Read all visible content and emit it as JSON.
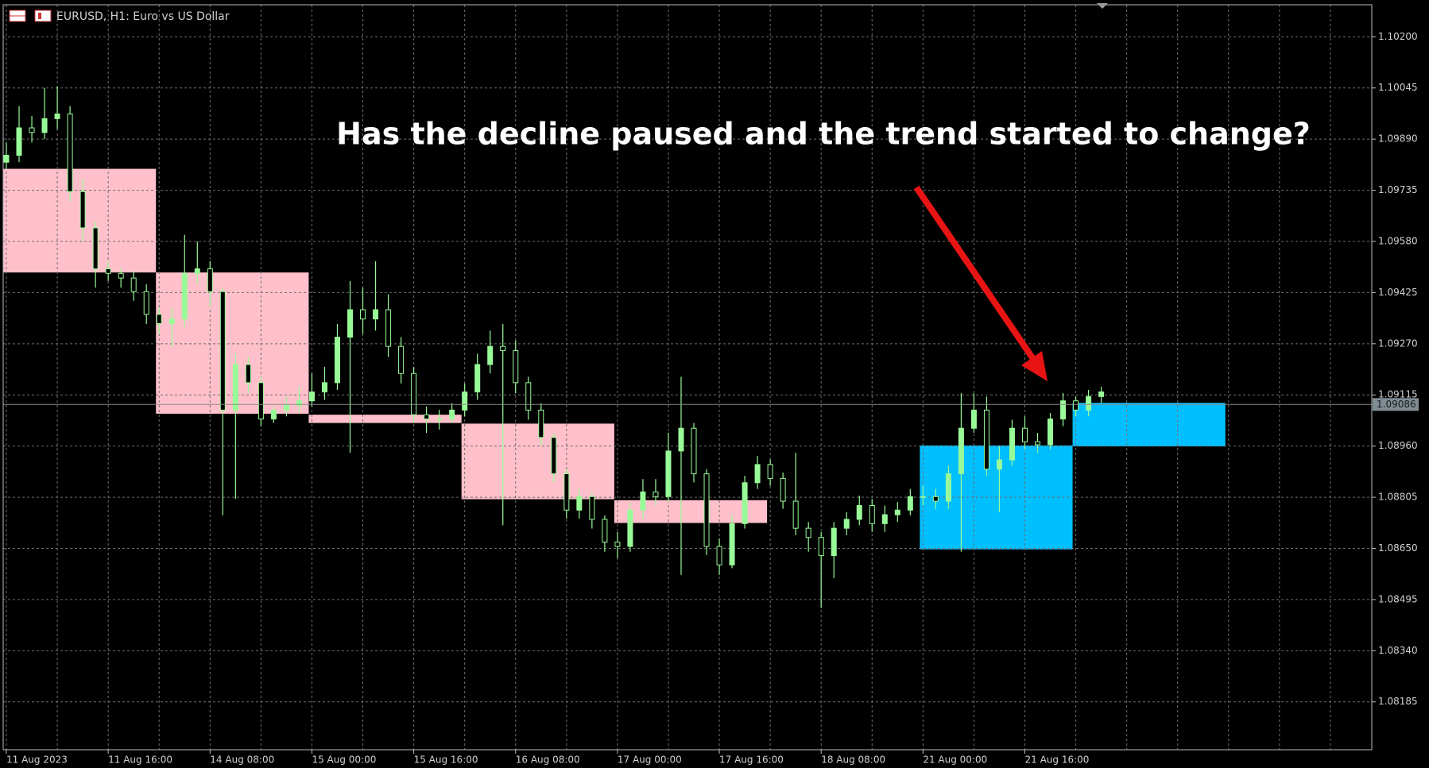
{
  "chart_data": {
    "type": "candlestick",
    "title": "EURUSD, H1:  Euro vs US Dollar",
    "annotation": "Has the decline paused and the trend started to change?",
    "x": [
      0,
      2,
      4,
      6,
      8,
      10,
      12,
      14,
      16,
      18,
      20,
      22,
      24,
      26,
      28,
      30,
      32,
      34,
      36,
      38,
      40,
      42,
      44,
      46,
      48,
      50,
      52,
      54,
      56,
      58,
      60,
      62,
      64,
      66,
      68,
      70,
      72,
      74,
      76,
      78,
      80,
      82,
      84,
      86,
      88,
      90,
      92,
      94,
      96,
      98,
      100,
      102,
      104,
      106,
      108,
      110,
      112,
      114,
      116,
      118,
      120,
      122,
      124,
      126,
      128,
      130,
      132,
      134,
      136,
      138,
      140,
      142,
      144,
      146,
      148,
      150,
      152,
      154,
      156,
      158,
      160,
      162,
      164,
      166,
      168,
      170,
      172
    ],
    "open": [
      1.0982,
      1.09841,
      1.09924,
      1.0991,
      1.09952,
      1.09966,
      1.09731,
      1.09621,
      1.09497,
      1.09483,
      1.09469,
      1.09428,
      1.09359,
      1.09331,
      1.09345,
      1.09483,
      1.09497,
      1.09428,
      1.09069,
      1.09207,
      1.09152,
      1.09042,
      1.09069,
      1.09083,
      1.09097,
      1.09124,
      1.09152,
      1.0929,
      1.09373,
      1.09345,
      1.09373,
      1.09262,
      1.0918,
      1.09055,
      1.09042,
      1.09042,
      1.09069,
      1.09124,
      1.09207,
      1.09262,
      1.09249,
      1.09152,
      1.09069,
      1.08986,
      1.08876,
      1.08766,
      1.08807,
      1.08738,
      1.08669,
      1.08656,
      1.08766,
      1.08821,
      1.08807,
      1.08945,
      1.09014,
      1.08876,
      1.08656,
      1.086,
      1.08725,
      1.08849,
      1.08904,
      1.08862,
      1.08793,
      1.08711,
      1.08683,
      1.08628,
      1.08711,
      1.08738,
      1.0878,
      1.08725,
      1.08752,
      1.08766,
      1.08807,
      1.08807,
      1.08793,
      1.08876,
      1.09014,
      1.09069,
      1.0889,
      1.08918,
      1.09014,
      1.08973,
      1.08964,
      1.09042,
      1.09097,
      1.09069,
      1.0911
    ],
    "high": [
      1.0988,
      1.0999,
      1.0996,
      1.10045,
      1.1005,
      1.0999,
      1.0977,
      1.0964,
      1.0952,
      1.095,
      1.0949,
      1.0945,
      1.0938,
      1.0938,
      1.096,
      1.0958,
      1.0952,
      1.0944,
      1.0924,
      1.0923,
      1.0917,
      1.0908,
      1.0911,
      1.0914,
      1.0918,
      1.092,
      1.0933,
      1.0946,
      1.0944,
      1.0952,
      1.0942,
      1.0929,
      1.092,
      1.0908,
      1.0907,
      1.0909,
      1.0915,
      1.0924,
      1.0931,
      1.0933,
      1.0928,
      1.0917,
      1.0909,
      1.09,
      1.0889,
      1.0883,
      1.0882,
      1.0875,
      1.087,
      1.0879,
      1.0886,
      1.0886,
      1.09,
      1.0917,
      1.0903,
      1.0889,
      1.0868,
      1.0875,
      1.0887,
      1.0893,
      1.0892,
      1.0888,
      1.0894,
      1.0873,
      1.087,
      1.0873,
      1.0876,
      1.0881,
      1.088,
      1.0878,
      1.0879,
      1.0883,
      1.0884,
      1.0883,
      1.089,
      1.0912,
      1.0912,
      1.0911,
      1.0896,
      1.0904,
      1.0905,
      1.09,
      1.0906,
      1.0912,
      1.0911,
      1.0913,
      1.0914
    ],
    "low": [
      1.098,
      1.0982,
      1.0988,
      1.0989,
      1.0992,
      1.097,
      1.0958,
      1.0944,
      1.0946,
      1.0944,
      1.094,
      1.0933,
      1.093,
      1.0926,
      1.0932,
      1.0945,
      1.0938,
      1.0875,
      1.088,
      1.0912,
      1.0902,
      1.0903,
      1.0905,
      1.0906,
      1.0908,
      1.091,
      1.0913,
      1.0894,
      1.093,
      1.0931,
      1.0923,
      1.0915,
      1.0903,
      1.09,
      1.0901,
      1.0903,
      1.0905,
      1.091,
      1.0918,
      1.0872,
      1.0912,
      1.0904,
      1.0896,
      1.0885,
      1.0874,
      1.0874,
      1.0871,
      1.0864,
      1.0862,
      1.0864,
      1.0874,
      1.0878,
      1.0879,
      1.0857,
      1.0885,
      1.0863,
      1.0857,
      1.0859,
      1.0871,
      1.0883,
      1.0884,
      1.0877,
      1.0869,
      1.0864,
      1.0847,
      1.0856,
      1.0869,
      1.0872,
      1.087,
      1.087,
      1.0873,
      1.0875,
      1.0878,
      1.0877,
      1.0877,
      1.0864,
      1.09,
      1.0887,
      1.0876,
      1.089,
      1.0895,
      1.0894,
      1.0895,
      1.0902,
      1.0905,
      1.0905,
      1.0909
    ],
    "close": [
      1.09841,
      1.09924,
      1.0991,
      1.09952,
      1.09966,
      1.09731,
      1.09621,
      1.09497,
      1.09483,
      1.09469,
      1.09428,
      1.09359,
      1.09331,
      1.09345,
      1.09483,
      1.09497,
      1.09428,
      1.09069,
      1.09207,
      1.09152,
      1.09042,
      1.09069,
      1.09083,
      1.09097,
      1.09124,
      1.09152,
      1.0929,
      1.09373,
      1.09345,
      1.09373,
      1.09262,
      1.0918,
      1.09055,
      1.09042,
      1.09042,
      1.09069,
      1.09124,
      1.09207,
      1.09262,
      1.09249,
      1.09152,
      1.09069,
      1.08986,
      1.08876,
      1.08766,
      1.08807,
      1.08738,
      1.08669,
      1.08656,
      1.08766,
      1.08821,
      1.08807,
      1.08945,
      1.09014,
      1.08876,
      1.08656,
      1.086,
      1.08725,
      1.08849,
      1.08904,
      1.08862,
      1.08793,
      1.08711,
      1.08683,
      1.08628,
      1.08711,
      1.08738,
      1.0878,
      1.08725,
      1.08752,
      1.08766,
      1.08807,
      1.08807,
      1.08793,
      1.08876,
      1.09014,
      1.09069,
      1.0889,
      1.08918,
      1.09014,
      1.08973,
      1.08964,
      1.09042,
      1.09097,
      1.09069,
      1.0911,
      1.09124
    ],
    "up_color": "#98fb98",
    "down_color": "#000000",
    "wick_color": "#98fb98",
    "zones": [
      {
        "start": 0,
        "end": 23,
        "high": 1.098,
        "low": 1.09486,
        "color": "#ffc0cb"
      },
      {
        "start": 24,
        "end": 47,
        "high": 1.09486,
        "low": 1.09058,
        "color": "#ffc0cb"
      },
      {
        "start": 48,
        "end": 71,
        "high": 1.09055,
        "low": 1.0903,
        "color": "#ffc0cb"
      },
      {
        "start": 72,
        "end": 95,
        "high": 1.09028,
        "low": 1.08799,
        "color": "#ffc0cb"
      },
      {
        "start": 96,
        "end": 119,
        "high": 1.08796,
        "low": 1.08727,
        "color": "#ffc0cb"
      },
      {
        "start": 144,
        "end": 167,
        "high": 1.08962,
        "low": 1.08647,
        "color": "#00bfff"
      },
      {
        "start": 168,
        "end": 191,
        "high": 1.09091,
        "low": 1.08959,
        "color": "#00bfff"
      }
    ],
    "current_price": 1.09086,
    "xlim": [
      -0.5,
      214.5
    ],
    "ylim": [
      1.0804,
      1.10297
    ],
    "xticks": [
      {
        "value": 0,
        "label": "11 Aug 2023"
      },
      {
        "value": 16,
        "label": "11 Aug 16:00"
      },
      {
        "value": 32,
        "label": "14 Aug 08:00"
      },
      {
        "value": 48,
        "label": "15 Aug 00:00"
      },
      {
        "value": 64,
        "label": "15 Aug 16:00"
      },
      {
        "value": 80,
        "label": "16 Aug 08:00"
      },
      {
        "value": 96,
        "label": "17 Aug 00:00"
      },
      {
        "value": 112,
        "label": "17 Aug 16:00"
      },
      {
        "value": 128,
        "label": "18 Aug 08:00"
      },
      {
        "value": 144,
        "label": "21 Aug 00:00"
      },
      {
        "value": 160,
        "label": "21 Aug 16:00"
      }
    ],
    "xgrid": [
      8,
      24,
      40,
      56,
      72,
      88,
      104,
      120,
      136,
      152,
      168,
      176,
      184,
      192,
      200,
      208
    ],
    "yticks": [
      {
        "value": 1.102,
        "label": "1.10200"
      },
      1.10045,
      {
        "value": 1.0989,
        "label": "1.09890"
      },
      1.09735,
      {
        "value": 1.0958,
        "label": "1.09580"
      },
      1.09425,
      {
        "value": 1.0927,
        "label": "1.09270"
      },
      1.09115,
      {
        "value": 1.0896,
        "label": "1.08960"
      },
      1.08805,
      {
        "value": 1.0865,
        "label": "1.08650"
      },
      1.08495,
      {
        "value": 1.0834,
        "label": "1.08340"
      },
      1.08185
    ],
    "grid": true
  }
}
